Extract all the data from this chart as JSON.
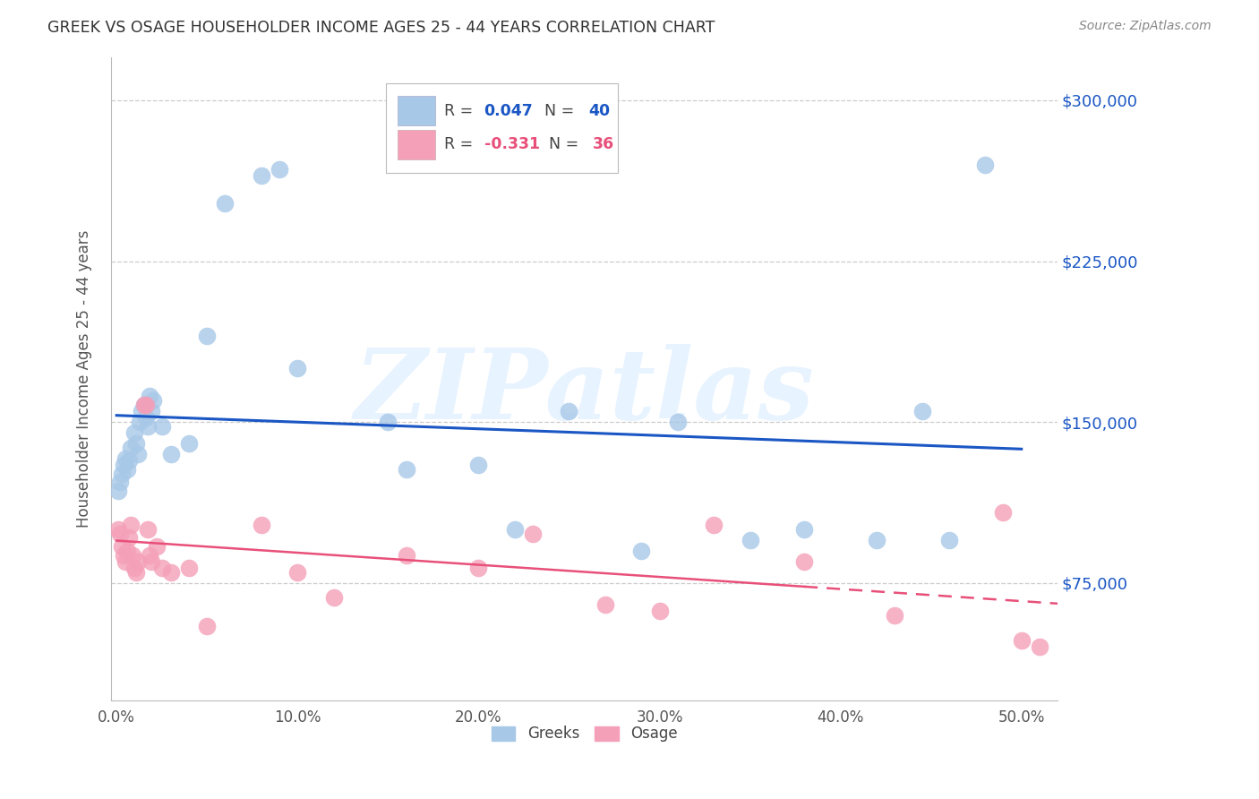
{
  "title": "GREEK VS OSAGE HOUSEHOLDER INCOME AGES 25 - 44 YEARS CORRELATION CHART",
  "source": "Source: ZipAtlas.com",
  "ylabel": "Householder Income Ages 25 - 44 years",
  "xlabel_ticks": [
    "0.0%",
    "10.0%",
    "20.0%",
    "30.0%",
    "40.0%",
    "50.0%"
  ],
  "xlabel_vals": [
    0.0,
    0.1,
    0.2,
    0.3,
    0.4,
    0.5
  ],
  "ylabel_ticks": [
    "$75,000",
    "$150,000",
    "$225,000",
    "$300,000"
  ],
  "ylabel_vals": [
    75000,
    150000,
    225000,
    300000
  ],
  "ylim": [
    20000,
    320000
  ],
  "xlim": [
    -0.003,
    0.52
  ],
  "greek_color": "#A8C8E8",
  "osage_color": "#F4A0B8",
  "greek_line_color": "#1A56C4",
  "osage_line_color": "#E8507A",
  "background_color": "#FFFFFF",
  "watermark_text": "ZIPatlas",
  "greek_label": "R = 0.047   N = 40",
  "osage_label": "R = -0.331   N = 36",
  "greek_R_text": "0.047",
  "greek_N_text": "40",
  "osage_R_text": "-0.331",
  "osage_N_text": "36",
  "greek_x": [
    0.001,
    0.002,
    0.003,
    0.004,
    0.005,
    0.006,
    0.007,
    0.008,
    0.01,
    0.011,
    0.012,
    0.013,
    0.014,
    0.015,
    0.016,
    0.017,
    0.018,
    0.019,
    0.02,
    0.025,
    0.03,
    0.04,
    0.05,
    0.06,
    0.08,
    0.09,
    0.1,
    0.15,
    0.16,
    0.2,
    0.22,
    0.25,
    0.29,
    0.31,
    0.35,
    0.38,
    0.42,
    0.445,
    0.46,
    0.48
  ],
  "greek_y": [
    118000,
    122000,
    126000,
    130000,
    133000,
    128000,
    132000,
    138000,
    145000,
    140000,
    135000,
    150000,
    155000,
    158000,
    152000,
    148000,
    162000,
    155000,
    160000,
    148000,
    135000,
    140000,
    190000,
    252000,
    265000,
    268000,
    175000,
    150000,
    128000,
    130000,
    100000,
    155000,
    90000,
    150000,
    95000,
    100000,
    95000,
    155000,
    95000,
    270000
  ],
  "osage_x": [
    0.001,
    0.002,
    0.003,
    0.004,
    0.005,
    0.006,
    0.007,
    0.008,
    0.009,
    0.01,
    0.011,
    0.012,
    0.015,
    0.016,
    0.017,
    0.018,
    0.019,
    0.022,
    0.025,
    0.03,
    0.04,
    0.05,
    0.08,
    0.1,
    0.12,
    0.16,
    0.2,
    0.23,
    0.27,
    0.3,
    0.33,
    0.38,
    0.43,
    0.49,
    0.5,
    0.51
  ],
  "osage_y": [
    100000,
    98000,
    92000,
    88000,
    85000,
    90000,
    96000,
    102000,
    88000,
    82000,
    80000,
    85000,
    158000,
    158000,
    100000,
    88000,
    85000,
    92000,
    82000,
    80000,
    82000,
    55000,
    102000,
    80000,
    68000,
    88000,
    82000,
    98000,
    65000,
    62000,
    102000,
    85000,
    60000,
    108000,
    48000,
    45000
  ]
}
